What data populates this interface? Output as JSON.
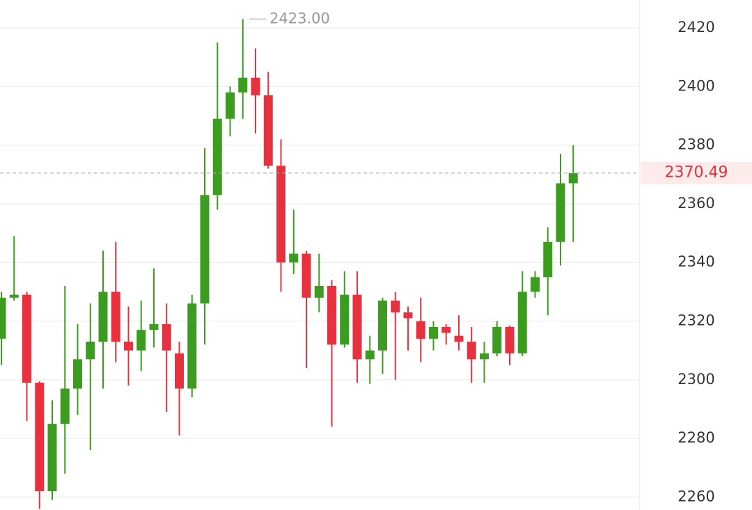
{
  "chart_data": {
    "type": "candlestick",
    "ylim": [
      2255.6,
      2429.5
    ],
    "yticks": [
      2260,
      2280,
      2300,
      2320,
      2340,
      2360,
      2380,
      2400,
      2420
    ],
    "grid": true,
    "up_color": "#3c9c1f",
    "down_color": "#e8313f",
    "open": [
      2314,
      2328,
      2329,
      2299,
      2262,
      2285,
      2297,
      2307,
      2313,
      2330,
      2313,
      2310,
      2317,
      2319,
      2309,
      2297,
      2326,
      2363,
      2389,
      2398,
      2403,
      2397,
      2373,
      2340,
      2343,
      2328,
      2332,
      2312,
      2329,
      2307,
      2310,
      2327,
      2323,
      2320,
      2314,
      2318,
      2315,
      2313,
      2307,
      2309,
      2318,
      2309,
      2330,
      2335,
      2347,
      2367
    ],
    "high": [
      2330,
      2349,
      2330,
      2299.5,
      2293,
      2332,
      2319,
      2326,
      2344,
      2347,
      2325,
      2327,
      2338,
      2326,
      2313,
      2329,
      2379,
      2415,
      2400,
      2423,
      2413,
      2405,
      2382,
      2358,
      2344,
      2343,
      2334,
      2337,
      2337,
      2315,
      2328,
      2330,
      2325,
      2328,
      2320,
      2319,
      2322,
      2318,
      2313,
      2320,
      2318.5,
      2337,
      2337,
      2352,
      2377,
      2380
    ],
    "low": [
      2305,
      2327,
      2286,
      2256,
      2259,
      2268,
      2288,
      2276,
      2297,
      2306,
      2298,
      2303,
      2311,
      2289,
      2281,
      2294,
      2312,
      2358,
      2383,
      2389,
      2384,
      2372,
      2330,
      2336,
      2304,
      2323,
      2284,
      2311,
      2299,
      2298.6,
      2302,
      2300,
      2310,
      2306,
      2310,
      2312,
      2310,
      2299,
      2299,
      2308,
      2305,
      2308,
      2328,
      2322,
      2339,
      2347
    ],
    "close": [
      2328,
      2329,
      2299,
      2262,
      2285,
      2297,
      2307,
      2313,
      2330,
      2313,
      2310,
      2317,
      2319,
      2310,
      2297,
      2326,
      2363,
      2389,
      2398,
      2403,
      2397,
      2373,
      2340,
      2343,
      2328,
      2332,
      2312,
      2329,
      2307,
      2310,
      2327,
      2323,
      2321,
      2314,
      2318,
      2316,
      2313,
      2307,
      2309,
      2318,
      2309,
      2330,
      2335,
      2347,
      2367,
      2370.49
    ],
    "last_price": 2370.49,
    "annotations": [
      {
        "value": 2423,
        "label": "2423.00"
      }
    ]
  }
}
